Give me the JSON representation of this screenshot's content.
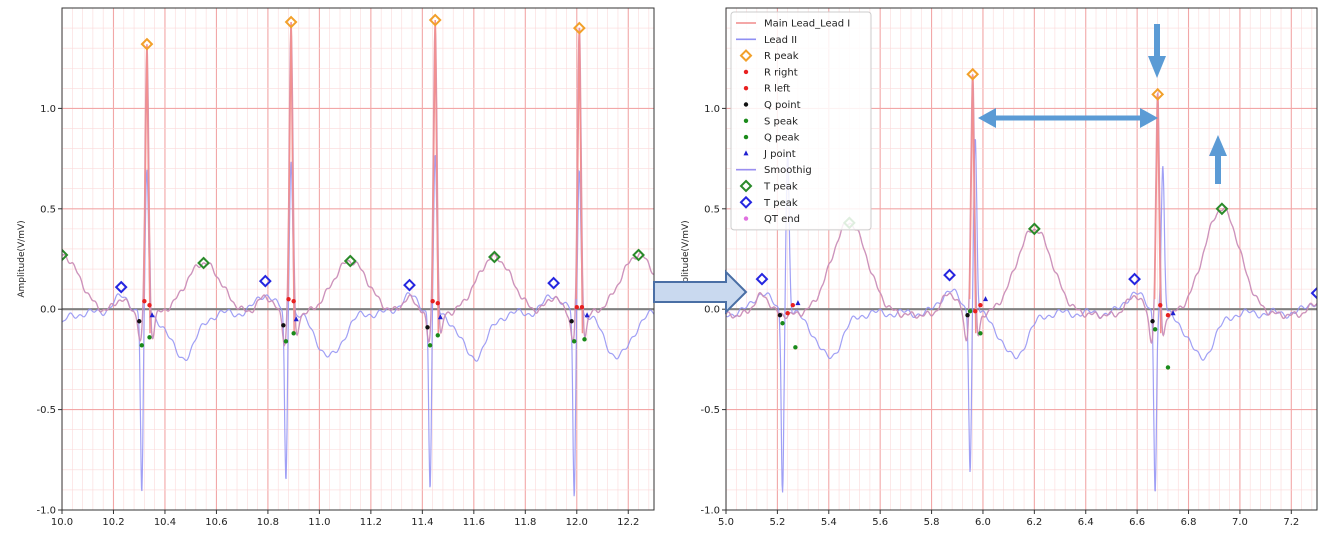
{
  "chart_data": [
    {
      "type": "line",
      "ylabel": "Amplitude(V/mV)",
      "xlim": [
        10.0,
        12.3
      ],
      "ylim": [
        -1.0,
        1.5
      ],
      "x_ticks": [
        "10.0",
        "10.2",
        "10.4",
        "10.6",
        "10.8",
        "11.0",
        "11.2",
        "11.4",
        "11.6",
        "11.8",
        "12.0",
        "12.2"
      ],
      "y_ticks": [
        "1.0",
        "0.5",
        "0.0",
        "-0.5",
        "-1.0"
      ],
      "r_peaks": [
        [
          10.33,
          1.32
        ],
        [
          10.89,
          1.43
        ],
        [
          11.45,
          1.44
        ],
        [
          12.01,
          1.4
        ]
      ],
      "lead2_peaks": [
        [
          10.33,
          0.68
        ],
        [
          10.89,
          0.76
        ],
        [
          11.45,
          0.75
        ],
        [
          12.01,
          0.71
        ]
      ],
      "lead2_troughs": [
        [
          10.31,
          -0.92
        ],
        [
          10.87,
          -0.87
        ],
        [
          11.43,
          -0.89
        ],
        [
          11.99,
          -0.96
        ]
      ],
      "t_peaks_green": [
        [
          10.0,
          0.27
        ],
        [
          10.55,
          0.23
        ],
        [
          11.12,
          0.24
        ],
        [
          11.68,
          0.26
        ],
        [
          12.24,
          0.27
        ]
      ],
      "t_peaks_blue": [
        [
          10.23,
          0.11
        ],
        [
          10.79,
          0.14
        ],
        [
          11.35,
          0.12
        ],
        [
          11.91,
          0.13
        ]
      ],
      "r_right": [
        [
          10.34,
          0.02
        ],
        [
          10.9,
          0.04
        ],
        [
          11.46,
          0.03
        ],
        [
          12.02,
          0.01
        ]
      ],
      "r_left": [
        [
          10.32,
          0.04
        ],
        [
          10.88,
          0.05
        ],
        [
          11.44,
          0.04
        ],
        [
          12.0,
          0.01
        ]
      ],
      "q_points": [
        [
          10.3,
          -0.06
        ],
        [
          10.86,
          -0.08
        ],
        [
          11.42,
          -0.09
        ],
        [
          11.98,
          -0.06
        ]
      ],
      "s_peaks": [
        [
          10.34,
          -0.14
        ],
        [
          10.9,
          -0.12
        ],
        [
          11.46,
          -0.13
        ],
        [
          12.03,
          -0.15
        ]
      ],
      "q_peaks": [
        [
          10.31,
          -0.18
        ],
        [
          10.87,
          -0.16
        ],
        [
          11.43,
          -0.18
        ],
        [
          11.99,
          -0.16
        ]
      ],
      "j_points": [
        [
          10.35,
          -0.03
        ],
        [
          10.91,
          -0.05
        ],
        [
          11.47,
          -0.04
        ],
        [
          12.04,
          -0.03
        ]
      ]
    },
    {
      "type": "line",
      "ylabel": "Amplitude(V/mV)",
      "xlim": [
        5.0,
        7.3
      ],
      "ylim": [
        -1.0,
        1.5
      ],
      "x_ticks": [
        "5.0",
        "5.2",
        "5.4",
        "5.6",
        "5.8",
        "6.0",
        "6.2",
        "6.4",
        "6.6",
        "6.8",
        "7.0",
        "7.2"
      ],
      "y_ticks": [
        "1.0",
        "0.5",
        "0.0",
        "-0.5",
        "-1.0"
      ],
      "legend": [
        "Main Lead_Lead I",
        "Lead II",
        "R peak",
        "R right",
        "R left",
        "Q point",
        "S peak",
        "Q peak",
        "J point",
        "Smoothig",
        "T peak",
        "T peak",
        "QT end"
      ],
      "r_peaks": [
        [
          5.96,
          1.17
        ],
        [
          6.68,
          1.07
        ]
      ],
      "lead2_peaks": [
        [
          5.24,
          0.78
        ],
        [
          5.97,
          0.85
        ],
        [
          6.7,
          0.71
        ]
      ],
      "lead2_troughs": [
        [
          5.22,
          -0.9
        ],
        [
          5.95,
          -0.8
        ],
        [
          6.67,
          -0.9
        ]
      ],
      "t_peaks_green": [
        [
          5.48,
          0.43
        ],
        [
          6.2,
          0.4
        ],
        [
          6.93,
          0.5
        ]
      ],
      "t_peaks_blue": [
        [
          5.14,
          0.15
        ],
        [
          5.87,
          0.17
        ],
        [
          6.59,
          0.15
        ],
        [
          7.3,
          0.08
        ]
      ],
      "r_right": [
        [
          5.26,
          0.02
        ],
        [
          5.99,
          0.02
        ],
        [
          6.72,
          -0.03
        ]
      ],
      "r_left": [
        [
          5.24,
          -0.02
        ],
        [
          5.97,
          -0.01
        ],
        [
          6.69,
          0.02
        ]
      ],
      "q_points": [
        [
          5.21,
          -0.03
        ],
        [
          5.94,
          -0.03
        ],
        [
          6.66,
          -0.06
        ]
      ],
      "s_peaks": [
        [
          5.27,
          -0.19
        ],
        [
          5.99,
          -0.12
        ],
        [
          6.72,
          -0.29
        ]
      ],
      "q_peaks": [
        [
          5.22,
          -0.07
        ],
        [
          5.95,
          -0.01
        ],
        [
          6.67,
          -0.1
        ]
      ],
      "j_points": [
        [
          5.28,
          0.03
        ],
        [
          6.01,
          0.05
        ],
        [
          6.74,
          -0.02
        ]
      ]
    }
  ]
}
